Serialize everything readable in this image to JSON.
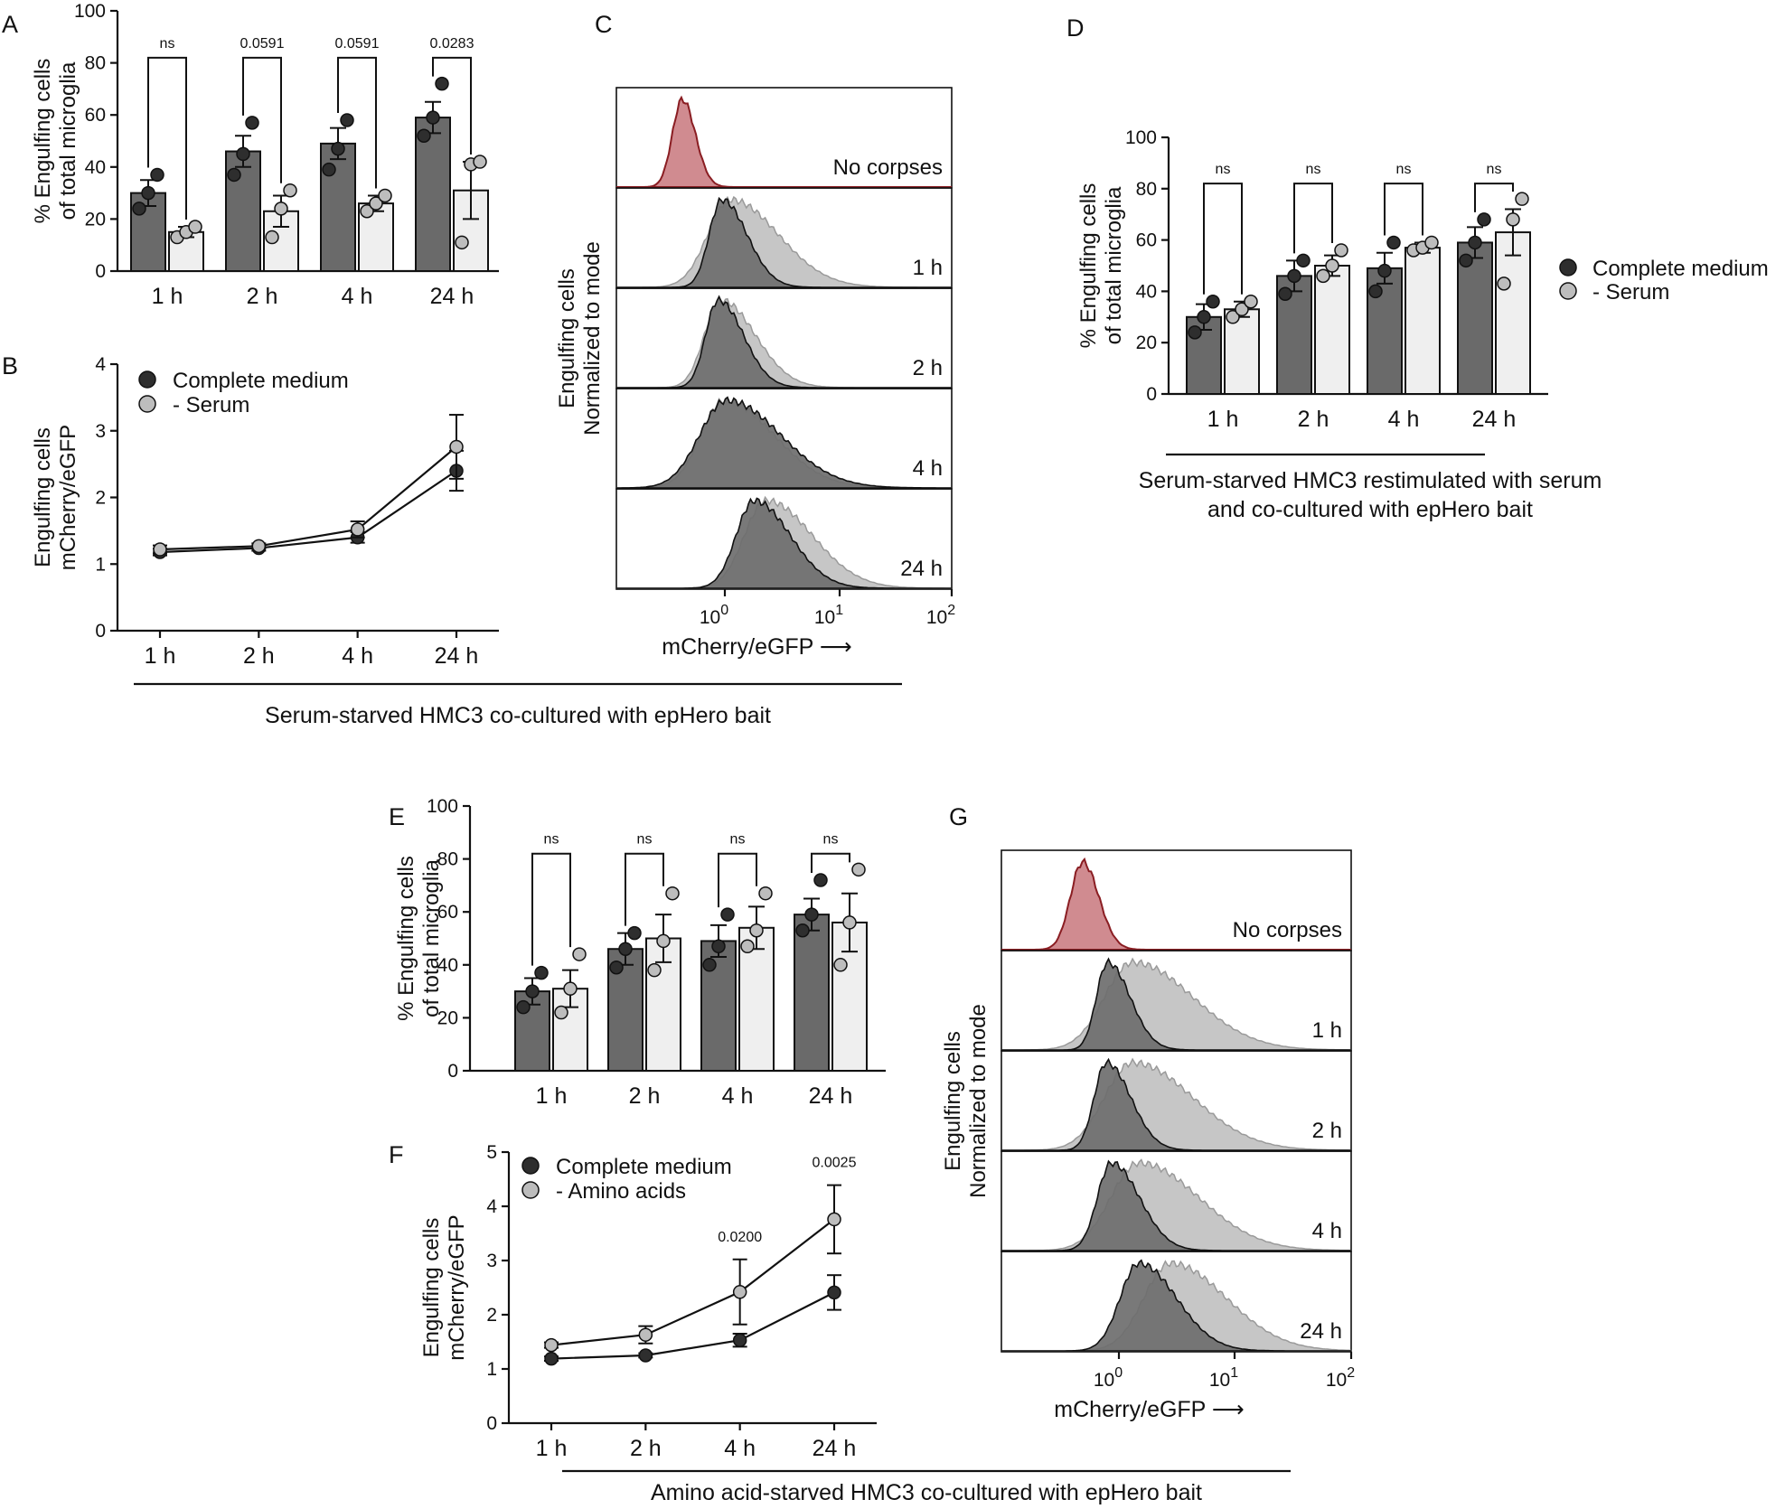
{
  "figure_labels": {
    "A": "A",
    "B": "B",
    "C": "C",
    "D": "D",
    "E": "E",
    "F": "F",
    "G": "G"
  },
  "legend": {
    "complete": "Complete medium",
    "serum": "- Serum",
    "amino": "- Amino acids"
  },
  "captions": {
    "serum": "Serum-starved HMC3 co-cultured with epHero bait",
    "restim_line1": "Serum-starved HMC3 restimulated with serum",
    "restim_line2": "and co-cultured with epHero bait",
    "amino": "Amino acid-starved HMC3 co-cultured with epHero bait"
  },
  "colors": {
    "dark_bar": "#6a6a6a",
    "light_bar": "#efefef",
    "dark_dot": "#2e2e2e",
    "light_dot": "#bdbdbd",
    "no_corpse_fill": "#d08b90",
    "no_corpse_line": "#8a1d22",
    "dark_hist": "#6e6e6e",
    "light_hist": "#c6c6c6"
  },
  "chart_data": [
    {
      "id": "A",
      "type": "bar",
      "ylabel_line1": "% Engulfing cells",
      "ylabel_line2": "of total microglia",
      "ylim": [
        0,
        100
      ],
      "yticks": [
        0,
        20,
        40,
        60,
        80,
        100
      ],
      "categories": [
        "1 h",
        "2 h",
        "4 h",
        "24 h"
      ],
      "series": [
        {
          "name": "Complete medium",
          "values": [
            30,
            46,
            49,
            59
          ],
          "errors": [
            5,
            6,
            6,
            6
          ],
          "points": [
            [
              24,
              30,
              37
            ],
            [
              37,
              45,
              57
            ],
            [
              39,
              47,
              58
            ],
            [
              52,
              59,
              72
            ]
          ]
        },
        {
          "name": "- Serum",
          "values": [
            15,
            23,
            26,
            31
          ],
          "errors": [
            2,
            6,
            3,
            11
          ],
          "points": [
            [
              13,
              15,
              17
            ],
            [
              13,
              24,
              31
            ],
            [
              23,
              26,
              29
            ],
            [
              11,
              41,
              42
            ]
          ]
        }
      ],
      "significance": [
        "ns",
        "0.0591",
        "0.0591",
        "0.0283"
      ]
    },
    {
      "id": "B",
      "type": "line",
      "ylabel_line1": "Engulfing cells",
      "ylabel_line2": "mCherry/eGFP",
      "ylim": [
        0,
        4
      ],
      "yticks": [
        0,
        1,
        2,
        3,
        4
      ],
      "categories": [
        "1 h",
        "2 h",
        "4 h",
        "24 h"
      ],
      "series": [
        {
          "name": "Complete medium",
          "values": [
            1.18,
            1.24,
            1.4,
            2.4
          ],
          "errors": [
            0.05,
            0.04,
            0.08,
            0.3
          ]
        },
        {
          "name": "- Serum",
          "values": [
            1.22,
            1.27,
            1.52,
            2.76
          ],
          "errors": [
            0.06,
            0.04,
            0.12,
            0.48
          ]
        }
      ]
    },
    {
      "id": "C",
      "type": "histogram",
      "ylabel_line1": "Engulfing cells",
      "ylabel_line2": "Normalized to mode",
      "xlabel": "mCherry/eGFP ⟶",
      "xticks_base": [
        "10",
        "10",
        "10"
      ],
      "xticks_exp": [
        "0",
        "1",
        "2"
      ],
      "rows": [
        {
          "label": "No corpses",
          "dark_peak": -0.25,
          "dark_width": 0.11,
          "light_peak": null,
          "light_width": 0
        },
        {
          "label": "1 h",
          "dark_peak": 0.08,
          "dark_width": 0.14,
          "light_peak": 0.15,
          "light_width": 0.25
        },
        {
          "label": "2 h",
          "dark_peak": 0.05,
          "dark_width": 0.14,
          "light_peak": 0.07,
          "light_width": 0.18
        },
        {
          "label": "4 h",
          "dark_peak": 0.12,
          "dark_width": 0.3,
          "light_peak": 0.1,
          "light_width": 0.26
        },
        {
          "label": "24 h",
          "dark_peak": 0.35,
          "dark_width": 0.2,
          "light_peak": 0.45,
          "light_width": 0.24
        }
      ]
    },
    {
      "id": "D",
      "type": "bar",
      "ylabel_line1": "% Engulfing cells",
      "ylabel_line2": "of total microglia",
      "ylim": [
        0,
        100
      ],
      "yticks": [
        0,
        20,
        40,
        60,
        80,
        100
      ],
      "categories": [
        "1 h",
        "2 h",
        "4 h",
        "24 h"
      ],
      "series": [
        {
          "name": "Complete medium",
          "values": [
            30,
            46,
            49,
            59
          ],
          "errors": [
            5,
            6,
            6,
            6
          ],
          "points": [
            [
              24,
              30,
              36
            ],
            [
              39,
              46,
              52
            ],
            [
              40,
              48,
              59
            ],
            [
              52,
              59,
              68
            ]
          ]
        },
        {
          "name": "- Serum",
          "values": [
            33,
            50,
            57,
            63
          ],
          "errors": [
            3,
            4,
            2,
            9
          ],
          "points": [
            [
              30,
              33,
              36
            ],
            [
              46,
              50,
              56
            ],
            [
              56,
              57,
              59
            ],
            [
              43,
              68,
              76
            ]
          ]
        }
      ],
      "significance": [
        "ns",
        "ns",
        "ns",
        "ns"
      ]
    },
    {
      "id": "E",
      "type": "bar",
      "ylabel_line1": "% Engulfing cells",
      "ylabel_line2": "of total microglia",
      "ylim": [
        0,
        100
      ],
      "yticks": [
        0,
        20,
        40,
        60,
        80,
        100
      ],
      "categories": [
        "1 h",
        "2 h",
        "4 h",
        "24 h"
      ],
      "series": [
        {
          "name": "Complete medium",
          "values": [
            30,
            46,
            49,
            59
          ],
          "errors": [
            5,
            6,
            6,
            6
          ],
          "points": [
            [
              24,
              30,
              37
            ],
            [
              39,
              46,
              52
            ],
            [
              40,
              47,
              59
            ],
            [
              53,
              59,
              72
            ]
          ]
        },
        {
          "name": "- Amino acids",
          "values": [
            31,
            50,
            54,
            56
          ],
          "errors": [
            7,
            9,
            8,
            11
          ],
          "points": [
            [
              22,
              31,
              44
            ],
            [
              38,
              49,
              67
            ],
            [
              47,
              53,
              67
            ],
            [
              40,
              56,
              76
            ]
          ]
        }
      ],
      "significance": [
        "ns",
        "ns",
        "ns",
        "ns"
      ]
    },
    {
      "id": "F",
      "type": "line",
      "ylabel_line1": "Engulfing cells",
      "ylabel_line2": "mCherry/eGFP",
      "ylim": [
        0,
        5
      ],
      "yticks": [
        0,
        1,
        2,
        3,
        4,
        5
      ],
      "categories": [
        "1 h",
        "2 h",
        "4 h",
        "24 h"
      ],
      "series": [
        {
          "name": "Complete medium",
          "values": [
            1.19,
            1.25,
            1.53,
            2.41
          ],
          "errors": [
            0.04,
            0.04,
            0.12,
            0.32
          ]
        },
        {
          "name": "- Amino acids",
          "values": [
            1.44,
            1.63,
            2.42,
            3.76
          ],
          "errors": [
            0.05,
            0.16,
            0.6,
            0.63
          ]
        }
      ],
      "annotations": [
        {
          "category": "4 h",
          "text": "0.0200"
        },
        {
          "category": "24 h",
          "text": "0.0025"
        }
      ]
    },
    {
      "id": "G",
      "type": "histogram",
      "ylabel_line1": "Engulfing cells",
      "ylabel_line2": "Normalized to mode",
      "xlabel": "mCherry/eGFP ⟶",
      "xticks_base": [
        "10",
        "10",
        "10"
      ],
      "xticks_exp": [
        "0",
        "1",
        "2"
      ],
      "rows": [
        {
          "label": "No corpses",
          "dark_peak": -0.15,
          "dark_width": 0.13,
          "light_peak": null,
          "light_width": 0
        },
        {
          "label": "1 h",
          "dark_peak": 0.05,
          "dark_width": 0.12,
          "light_peak": 0.25,
          "light_width": 0.3
        },
        {
          "label": "2 h",
          "dark_peak": 0.04,
          "dark_width": 0.13,
          "light_peak": 0.25,
          "light_width": 0.3
        },
        {
          "label": "4 h",
          "dark_peak": 0.08,
          "dark_width": 0.15,
          "light_peak": 0.3,
          "light_width": 0.3
        },
        {
          "label": "24 h",
          "dark_peak": 0.3,
          "dark_width": 0.2,
          "light_peak": 0.55,
          "light_width": 0.28
        }
      ]
    }
  ]
}
